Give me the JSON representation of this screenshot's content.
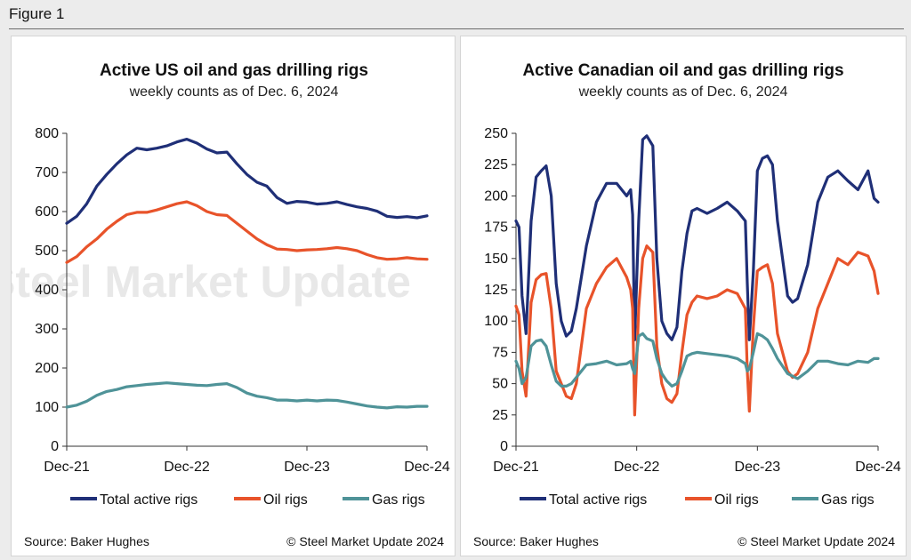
{
  "figure_label": "Figure 1",
  "chart_data": [
    {
      "type": "line",
      "title": "Active US oil and gas drilling rigs",
      "subtitle": "weekly counts as of Dec. 6, 2024",
      "x_tick_labels": [
        "Dec-21",
        "Dec-22",
        "Dec-23",
        "Dec-24"
      ],
      "x_range": [
        0,
        36
      ],
      "x_unit": "months since Dec-21",
      "ylim": [
        0,
        800
      ],
      "yticks": [
        0,
        100,
        200,
        300,
        400,
        500,
        600,
        700,
        800
      ],
      "xlabel": "",
      "ylabel": "",
      "legend_placement": "bottom",
      "series": [
        {
          "name": "Total active rigs",
          "color": "#1f2f77",
          "x": [
            0,
            1,
            2,
            3,
            4,
            5,
            6,
            7,
            8,
            9,
            10,
            11,
            12,
            13,
            14,
            15,
            16,
            17,
            18,
            19,
            20,
            21,
            22,
            23,
            24,
            25,
            26,
            27,
            28,
            29,
            30,
            31,
            32,
            33,
            34,
            35,
            36
          ],
          "values": [
            570,
            588,
            620,
            665,
            695,
            722,
            745,
            762,
            758,
            762,
            768,
            778,
            785,
            775,
            760,
            750,
            752,
            722,
            695,
            675,
            665,
            636,
            621,
            626,
            624,
            619,
            621,
            625,
            618,
            612,
            608,
            601,
            588,
            585,
            587,
            584,
            589
          ]
        },
        {
          "name": "Oil rigs",
          "color": "#e8532a",
          "x": [
            0,
            1,
            2,
            3,
            4,
            5,
            6,
            7,
            8,
            9,
            10,
            11,
            12,
            13,
            14,
            15,
            16,
            17,
            18,
            19,
            20,
            21,
            22,
            23,
            24,
            25,
            26,
            27,
            28,
            29,
            30,
            31,
            32,
            33,
            34,
            35,
            36
          ],
          "values": [
            470,
            485,
            510,
            530,
            555,
            575,
            592,
            598,
            598,
            604,
            612,
            620,
            625,
            615,
            600,
            592,
            590,
            570,
            550,
            530,
            515,
            504,
            503,
            500,
            502,
            503,
            505,
            508,
            505,
            500,
            490,
            482,
            478,
            479,
            482,
            479,
            478
          ]
        },
        {
          "name": "Gas rigs",
          "color": "#4f9398",
          "x": [
            0,
            1,
            2,
            3,
            4,
            5,
            6,
            7,
            8,
            9,
            10,
            11,
            12,
            13,
            14,
            15,
            16,
            17,
            18,
            19,
            20,
            21,
            22,
            23,
            24,
            25,
            26,
            27,
            28,
            29,
            30,
            31,
            32,
            33,
            34,
            35,
            36
          ],
          "values": [
            100,
            105,
            115,
            130,
            140,
            145,
            152,
            155,
            158,
            160,
            162,
            160,
            158,
            156,
            155,
            158,
            160,
            150,
            136,
            128,
            124,
            118,
            118,
            116,
            118,
            116,
            118,
            117,
            113,
            108,
            103,
            100,
            98,
            101,
            100,
            102,
            102
          ]
        }
      ]
    },
    {
      "type": "line",
      "title": "Active Canadian oil and gas drilling rigs",
      "subtitle": "weekly counts as of Dec. 6, 2024",
      "x_tick_labels": [
        "Dec-21",
        "Dec-22",
        "Dec-23",
        "Dec-24"
      ],
      "x_range": [
        0,
        36
      ],
      "x_unit": "months since Dec-21",
      "ylim": [
        0,
        250
      ],
      "yticks": [
        0,
        25,
        50,
        75,
        100,
        125,
        150,
        175,
        200,
        225,
        250
      ],
      "xlabel": "",
      "ylabel": "",
      "legend_placement": "bottom",
      "series": [
        {
          "name": "Total active rigs",
          "color": "#1f2f77",
          "x": [
            0,
            0.3,
            0.6,
            1.0,
            1.5,
            2.0,
            2.5,
            3.0,
            3.5,
            4.0,
            4.5,
            5.0,
            5.5,
            6.0,
            7.0,
            8.0,
            9.0,
            10.0,
            11.0,
            11.4,
            11.6,
            11.8,
            12.2,
            12.6,
            13.0,
            13.6,
            14.0,
            14.5,
            15.0,
            15.5,
            16.0,
            16.5,
            17.0,
            17.5,
            18.0,
            19.0,
            20.0,
            21.0,
            22.0,
            22.8,
            23.0,
            23.2,
            23.6,
            24.0,
            24.5,
            25.0,
            25.5,
            26.0,
            27.0,
            27.5,
            28.0,
            29.0,
            30.0,
            31.0,
            32.0,
            33.0,
            34.0,
            35.0,
            35.6,
            36.0
          ],
          "values": [
            180,
            175,
            120,
            90,
            180,
            215,
            220,
            224,
            200,
            130,
            100,
            88,
            92,
            110,
            160,
            195,
            210,
            210,
            200,
            205,
            185,
            85,
            180,
            245,
            248,
            240,
            150,
            100,
            90,
            85,
            95,
            140,
            170,
            188,
            190,
            186,
            190,
            195,
            188,
            180,
            130,
            85,
            140,
            220,
            230,
            232,
            225,
            180,
            120,
            115,
            118,
            145,
            195,
            215,
            220,
            212,
            205,
            220,
            198,
            195
          ]
        },
        {
          "name": "Oil rigs",
          "color": "#e8532a",
          "x": [
            0,
            0.3,
            0.6,
            1.0,
            1.5,
            2.0,
            2.5,
            3.0,
            3.5,
            4.0,
            4.5,
            5.0,
            5.5,
            6.0,
            7.0,
            8.0,
            9.0,
            10.0,
            11.0,
            11.4,
            11.6,
            11.8,
            12.2,
            12.6,
            13.0,
            13.6,
            14.0,
            14.5,
            15.0,
            15.5,
            16.0,
            16.5,
            17.0,
            17.5,
            18.0,
            19.0,
            20.0,
            21.0,
            22.0,
            22.8,
            23.0,
            23.2,
            23.6,
            24.0,
            24.5,
            25.0,
            25.5,
            26.0,
            27.0,
            27.5,
            28.0,
            29.0,
            30.0,
            31.0,
            32.0,
            33.0,
            34.0,
            35.0,
            35.6,
            36.0
          ],
          "values": [
            112,
            105,
            60,
            40,
            115,
            133,
            137,
            138,
            110,
            60,
            50,
            40,
            38,
            50,
            110,
            130,
            143,
            150,
            135,
            125,
            110,
            25,
            110,
            150,
            160,
            155,
            80,
            50,
            38,
            35,
            42,
            75,
            105,
            115,
            120,
            118,
            120,
            125,
            122,
            110,
            60,
            28,
            95,
            140,
            143,
            145,
            130,
            90,
            60,
            55,
            58,
            75,
            110,
            130,
            150,
            145,
            155,
            152,
            140,
            122
          ]
        },
        {
          "name": "Gas rigs",
          "color": "#4f9398",
          "x": [
            0,
            0.3,
            0.6,
            1.0,
            1.5,
            2.0,
            2.5,
            3.0,
            3.5,
            4.0,
            4.5,
            5.0,
            5.5,
            6.0,
            7.0,
            8.0,
            9.0,
            10.0,
            11.0,
            11.4,
            11.6,
            11.8,
            12.2,
            12.6,
            13.0,
            13.6,
            14.0,
            14.5,
            15.0,
            15.5,
            16.0,
            16.5,
            17.0,
            17.5,
            18.0,
            19.0,
            20.0,
            21.0,
            22.0,
            22.8,
            23.0,
            23.2,
            23.6,
            24.0,
            24.5,
            25.0,
            25.5,
            26.0,
            27.0,
            27.5,
            28.0,
            29.0,
            30.0,
            31.0,
            32.0,
            33.0,
            34.0,
            35.0,
            35.6,
            36.0
          ],
          "values": [
            68,
            62,
            50,
            55,
            80,
            84,
            85,
            80,
            65,
            52,
            48,
            48,
            50,
            55,
            65,
            66,
            68,
            65,
            66,
            68,
            62,
            58,
            88,
            90,
            86,
            84,
            70,
            58,
            52,
            48,
            50,
            60,
            72,
            74,
            75,
            74,
            73,
            72,
            70,
            66,
            60,
            62,
            75,
            90,
            88,
            85,
            78,
            70,
            58,
            56,
            54,
            60,
            68,
            68,
            66,
            65,
            68,
            67,
            70,
            70
          ]
        }
      ]
    }
  ],
  "watermark": "Steel Market Update",
  "footer": {
    "source": "Source: Baker Hughes",
    "copyright": "© Steel Market Update 2024"
  }
}
